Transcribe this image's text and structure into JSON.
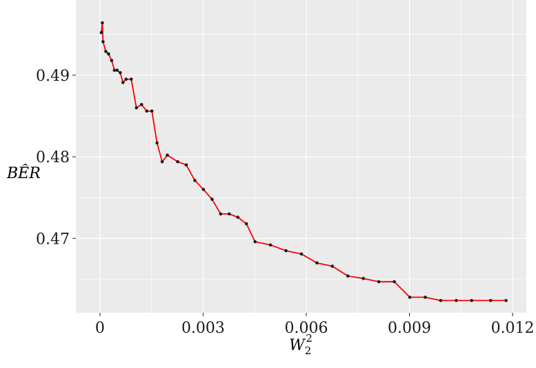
{
  "chart_data": {
    "type": "line",
    "title": "",
    "xlabel": "W",
    "xlabel_sub": "2",
    "xlabel_sup": "2",
    "ylabel": "BÊR",
    "xlim": [
      -0.0007,
      0.0124
    ],
    "ylim": [
      0.4609,
      0.4992
    ],
    "x_ticks": [
      0,
      0.003,
      0.006,
      0.009,
      0.012
    ],
    "x_tick_labels": [
      "0",
      "0.003",
      "0.006",
      "0.009",
      "0.012"
    ],
    "y_ticks": [
      0.47,
      0.48,
      0.49
    ],
    "y_tick_labels": [
      "0.47",
      "0.48",
      "0.49"
    ],
    "grid": true,
    "background": "#ebebeb",
    "grid_color": "#ffffff",
    "line_color": "#ff0000",
    "point_color": "#1a1a1a",
    "series": [
      {
        "x": [
          4e-05,
          7e-05,
          9e-05,
          0.00017,
          0.00025,
          0.00034,
          0.00042,
          0.0005,
          0.00059,
          0.00067,
          0.00076,
          0.00091,
          0.00106,
          0.00121,
          0.00136,
          0.00151,
          0.00166,
          0.00181,
          0.00196,
          0.00226,
          0.00251,
          0.00276,
          0.00301,
          0.00326,
          0.00351,
          0.00376,
          0.00401,
          0.00426,
          0.00451,
          0.00496,
          0.00541,
          0.00586,
          0.00631,
          0.00676,
          0.00721,
          0.00766,
          0.00811,
          0.00856,
          0.00901,
          0.00946,
          0.00991,
          0.01036,
          0.01081,
          0.01136,
          0.01181
        ],
        "y": [
          0.4952,
          0.4964,
          0.4941,
          0.4929,
          0.4926,
          0.4918,
          0.4906,
          0.4906,
          0.4903,
          0.4891,
          0.4895,
          0.4895,
          0.486,
          0.4864,
          0.4856,
          0.4856,
          0.4817,
          0.4794,
          0.4802,
          0.4794,
          0.479,
          0.4771,
          0.476,
          0.4748,
          0.473,
          0.473,
          0.4726,
          0.4718,
          0.4696,
          0.4692,
          0.4685,
          0.4681,
          0.467,
          0.4666,
          0.4654,
          0.4651,
          0.4647,
          0.4647,
          0.4628,
          0.4628,
          0.4624,
          0.4624,
          0.4624,
          0.4624,
          0.4624
        ]
      }
    ]
  }
}
